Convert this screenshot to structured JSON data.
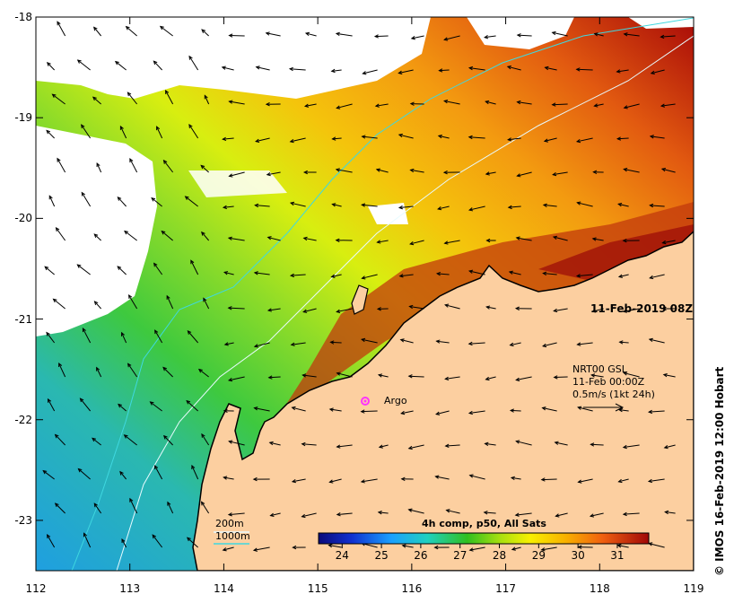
{
  "map": {
    "timestamp": "11-Feb-2019 08Z",
    "credit": "© IMOS 16-Feb-2019 12:00 Hobart",
    "x_axis": {
      "ticks": [
        "112",
        "113",
        "114",
        "115",
        "116",
        "117",
        "118",
        "119"
      ],
      "range": [
        112,
        119
      ]
    },
    "y_axis": {
      "ticks": [
        "-18",
        "-19",
        "-20",
        "-21",
        "-22",
        "-23"
      ],
      "range": [
        -23.5,
        -18
      ]
    },
    "currents_legend": {
      "line1": "NRT00 GSL",
      "line2": "11-Feb 00:00Z",
      "line3": "0.5m/s (1kt 24h)"
    },
    "float": {
      "label": "Argo",
      "lon": 115.47,
      "lat": -21.85
    },
    "isobaths": {
      "shallow": "200m",
      "deep": "1000m"
    },
    "colorbar": {
      "title": "4h comp, p50, All Sats",
      "ticks": [
        "24",
        "25",
        "26",
        "27",
        "28",
        "29",
        "30",
        "31"
      ],
      "range": [
        23.4,
        31.8
      ]
    },
    "colors": {
      "land": "#fccfa0",
      "cloud": "#ffffff",
      "isobath_200": "#e8fbff",
      "isobath_1000": "#3fd8e0",
      "argo": "#ff33ff"
    }
  }
}
